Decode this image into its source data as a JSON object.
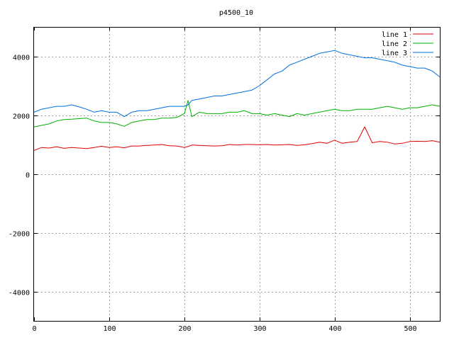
{
  "chart_data": {
    "type": "line",
    "title": "p4500_10",
    "xlabel": "",
    "ylabel": "",
    "xlim": [
      0,
      540
    ],
    "ylim": [
      -5000,
      5000
    ],
    "x_ticks": [
      0,
      100,
      200,
      300,
      400,
      500
    ],
    "y_ticks": [
      -4000,
      -2000,
      0,
      2000,
      4000
    ],
    "grid": true,
    "legend_position": "top-right",
    "x": [
      0,
      10,
      20,
      30,
      40,
      50,
      60,
      70,
      80,
      90,
      100,
      110,
      120,
      130,
      140,
      150,
      160,
      170,
      180,
      190,
      200,
      205,
      210,
      220,
      230,
      240,
      250,
      260,
      270,
      280,
      290,
      300,
      310,
      320,
      330,
      340,
      350,
      360,
      370,
      380,
      390,
      400,
      410,
      420,
      430,
      440,
      450,
      460,
      470,
      480,
      490,
      500,
      510,
      520,
      530,
      540
    ],
    "series": [
      {
        "name": "line 1",
        "color": "#e00000",
        "values": [
          800,
          900,
          880,
          920,
          870,
          900,
          880,
          860,
          900,
          940,
          900,
          920,
          890,
          950,
          950,
          970,
          980,
          1000,
          960,
          950,
          900,
          930,
          980,
          970,
          960,
          950,
          960,
          1000,
          980,
          1000,
          1000,
          990,
          1000,
          980,
          990,
          1000,
          970,
          990,
          1030,
          1080,
          1040,
          1150,
          1040,
          1080,
          1100,
          1600,
          1060,
          1100,
          1080,
          1020,
          1040,
          1100,
          1110,
          1100,
          1130,
          1080
        ]
      },
      {
        "name": "line 2",
        "color": "#00b000",
        "values": [
          1600,
          1650,
          1700,
          1800,
          1850,
          1860,
          1880,
          1900,
          1800,
          1750,
          1750,
          1700,
          1620,
          1750,
          1800,
          1850,
          1850,
          1900,
          1900,
          1920,
          2050,
          2500,
          1950,
          2100,
          2050,
          2050,
          2050,
          2100,
          2100,
          2150,
          2050,
          2050,
          2000,
          2050,
          2000,
          1950,
          2050,
          2000,
          2050,
          2100,
          2150,
          2200,
          2150,
          2150,
          2200,
          2200,
          2200,
          2250,
          2300,
          2250,
          2200,
          2250,
          2250,
          2300,
          2350,
          2300
        ]
      },
      {
        "name": "line 3",
        "color": "#0070e0",
        "values": [
          2100,
          2200,
          2250,
          2300,
          2300,
          2350,
          2280,
          2200,
          2100,
          2150,
          2100,
          2100,
          1950,
          2100,
          2150,
          2150,
          2200,
          2250,
          2300,
          2300,
          2300,
          2350,
          2500,
          2550,
          2600,
          2650,
          2650,
          2700,
          2750,
          2800,
          2850,
          3000,
          3200,
          3400,
          3500,
          3700,
          3800,
          3900,
          4000,
          4100,
          4150,
          4200,
          4100,
          4050,
          4000,
          3950,
          3950,
          3900,
          3850,
          3800,
          3700,
          3650,
          3600,
          3600,
          3500,
          3300
        ]
      }
    ]
  }
}
